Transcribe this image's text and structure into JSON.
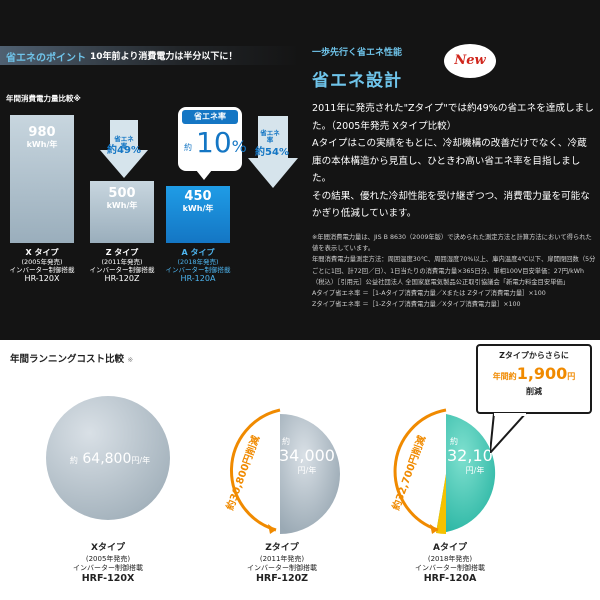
{
  "energy": {
    "point_title": "省エネのポイント",
    "point_sub": "10年前より消費電力は半分以下に！",
    "chart_title": "年間消費電力量比較※",
    "bars": [
      {
        "value": "980",
        "unit": "kWh/年",
        "type": "X タイプ",
        "year": "(2005年発売)",
        "motor": "インバーター制御搭載",
        "model": "HR-120X"
      },
      {
        "value": "500",
        "unit": "kWh/年",
        "type": "Z タイプ",
        "year": "(2011年発売)",
        "motor": "インバーター制御搭載",
        "model": "HR-120Z"
      },
      {
        "value": "450",
        "unit": "kWh/年",
        "type": "A タイプ",
        "year": "(2018年発売)",
        "motor": "インバーター制御搭載",
        "model": "HR-120A"
      }
    ],
    "arrow_z": {
      "label": "省エネ率",
      "value": "約49%"
    },
    "arrow_right": {
      "label": "省エネ率",
      "value": "約54%"
    },
    "bubble": {
      "title": "省エネ率",
      "yaku": "約",
      "value": "10",
      "pct": "%"
    },
    "levels": [
      1.0,
      0.51,
      0.459
    ]
  },
  "design": {
    "kicker": "一歩先行く省エネ性能",
    "title": "省エネ設計",
    "badge": "New",
    "body": [
      "2011年に発売された\"Zタイプ\"では約49%の省エネを達成しました。（2005年発売 Xタイプ比較）",
      "Aタイプはこの実績をもとに、冷却機構の改善だけでなく、冷蔵庫の本体構造から見直し、ひときわ高い省エネ率を目指しました。",
      "その結果、優れた冷却性能を受け継ぎつつ、消費電力量を可能なかぎり低減しています。"
    ],
    "notes": [
      "※年間消費電力量は、JIS B 8630（2009年版）で決められた測定方法と計算方法において得られた値を表示しています。",
      "年間消費電力量測定方法：周囲温度30℃、周囲湿度70%以上、庫内温度4℃以下、扉開閉回数（5分ごとに1回、計72回／日）、1日当たりの消費電力量×365日分、単相100V目安単価：27円/kWh（税込）［引用元］公益社団法人 全国家庭電気製品公正取引協議会「新電力料金目安単価」",
      "Aタイプ省エネ率 ＝［1-Aタイプ消費電力量／Xまたは Zタイプ消費電力量］×100",
      "Zタイプ省エネ率 ＝［1-Zタイプ消費電力量／Xタイプ消費電力量］×100"
    ]
  },
  "cost": {
    "title": "年間ランニングコスト比較",
    "title_mark": "※",
    "items": [
      {
        "yaku": "約",
        "value": "64,800",
        "unit": "円/年",
        "type": "Xタイプ",
        "year": "(2005年発売)",
        "motor": "インバーター制御搭載",
        "model": "HRF-120X"
      },
      {
        "yaku": "約",
        "value": "34,000",
        "unit": "円/年",
        "type": "Zタイプ",
        "year": "(2011年発売)",
        "motor": "インバーター制御搭載",
        "model": "HRF-120Z"
      },
      {
        "yaku": "約",
        "value": "32,100",
        "unit": "円/年",
        "type": "Aタイプ",
        "year": "(2018年発売)",
        "motor": "インバーター制御搭載",
        "model": "HRF-120A"
      }
    ],
    "savings_z": "約30,800円削減",
    "savings_a": "約32,700円削減",
    "callout": {
      "line1": "Zタイプからさらに",
      "prefix": "年間約",
      "amount": "1,900",
      "suffix": "円",
      "line3": "削減"
    },
    "colors": {
      "x": "#a6b4be",
      "z": "#a6b4be",
      "a": "#3cc6b4",
      "arrow": "#f08a00",
      "accent": "#1476c4"
    }
  }
}
